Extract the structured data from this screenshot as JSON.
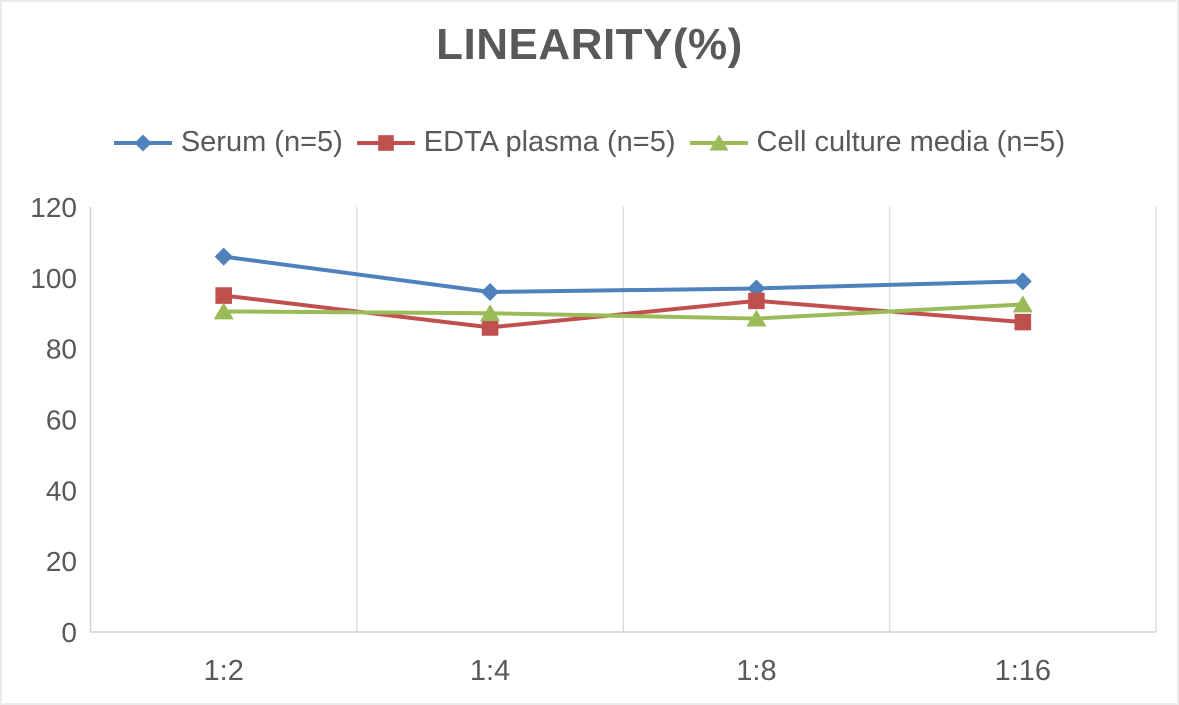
{
  "chart_data": {
    "type": "line",
    "title": "LINEARITY(%)",
    "categories": [
      "1:2",
      "1:4",
      "1:8",
      "1:16"
    ],
    "series": [
      {
        "name": "Serum (n=5)",
        "color": "#4F81BD",
        "marker": "diamond",
        "values": [
          106,
          96,
          97,
          99
        ]
      },
      {
        "name": "EDTA plasma (n=5)",
        "color": "#C0504D",
        "marker": "square",
        "values": [
          95,
          86,
          93.5,
          87.5
        ]
      },
      {
        "name": "Cell culture media (n=5)",
        "color": "#9BBB59",
        "marker": "triangle",
        "values": [
          90.5,
          90,
          88.5,
          92.5
        ]
      }
    ],
    "yticks": [
      0,
      20,
      40,
      60,
      80,
      100,
      120
    ],
    "ylim": [
      0,
      120
    ],
    "xlabel": "",
    "ylabel": "",
    "legend_position": "top",
    "grid": "vertical-only",
    "colors": {
      "text": "#595959",
      "gridline": "#dedede",
      "axis": "#d2d2d2",
      "background": "#ffffff",
      "border": "#ebebeb"
    }
  }
}
